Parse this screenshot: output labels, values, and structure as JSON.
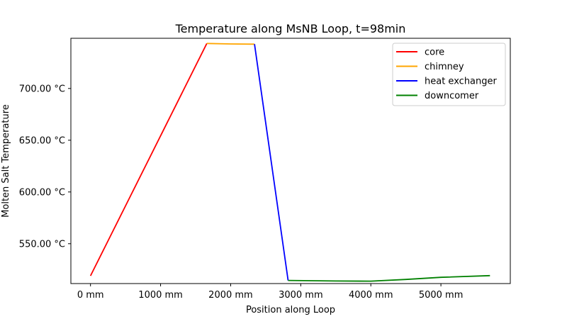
{
  "chart_data": {
    "type": "line",
    "title": "Temperature along MsNB Loop, t=98min",
    "xlabel": "Position along Loop",
    "ylabel": "Molten Salt Temperature",
    "xlim": [
      -280,
      5990
    ],
    "ylim": [
      511.5,
      748.5
    ],
    "x_ticks": [
      {
        "value": 0,
        "label": "0 mm"
      },
      {
        "value": 1000,
        "label": "1000 mm"
      },
      {
        "value": 2000,
        "label": "2000 mm"
      },
      {
        "value": 3000,
        "label": "3000 mm"
      },
      {
        "value": 4000,
        "label": "4000 mm"
      },
      {
        "value": 5000,
        "label": "5000 mm"
      }
    ],
    "y_ticks": [
      {
        "value": 550,
        "label": "550.00 °C"
      },
      {
        "value": 600,
        "label": "600.00 °C"
      },
      {
        "value": 650,
        "label": "650.00 °C"
      },
      {
        "value": 700,
        "label": "700.00 °C"
      }
    ],
    "grid": false,
    "legend_position": "top-right",
    "series": [
      {
        "name": "core",
        "color": "#ff0000",
        "x": [
          0,
          1660
        ],
        "y": [
          519,
          743.5
        ]
      },
      {
        "name": "chimney",
        "color": "#ffa500",
        "x": [
          1660,
          2000,
          2340
        ],
        "y": [
          743.5,
          743,
          742.8
        ]
      },
      {
        "name": "heat exchanger",
        "color": "#0000ff",
        "x": [
          2340,
          2820
        ],
        "y": [
          742.8,
          514.5
        ]
      },
      {
        "name": "downcomer",
        "color": "#008000",
        "x": [
          2820,
          3500,
          4000,
          4500,
          5000,
          5700
        ],
        "y": [
          514.5,
          514,
          513.8,
          515.5,
          517.5,
          519.2
        ]
      }
    ]
  }
}
